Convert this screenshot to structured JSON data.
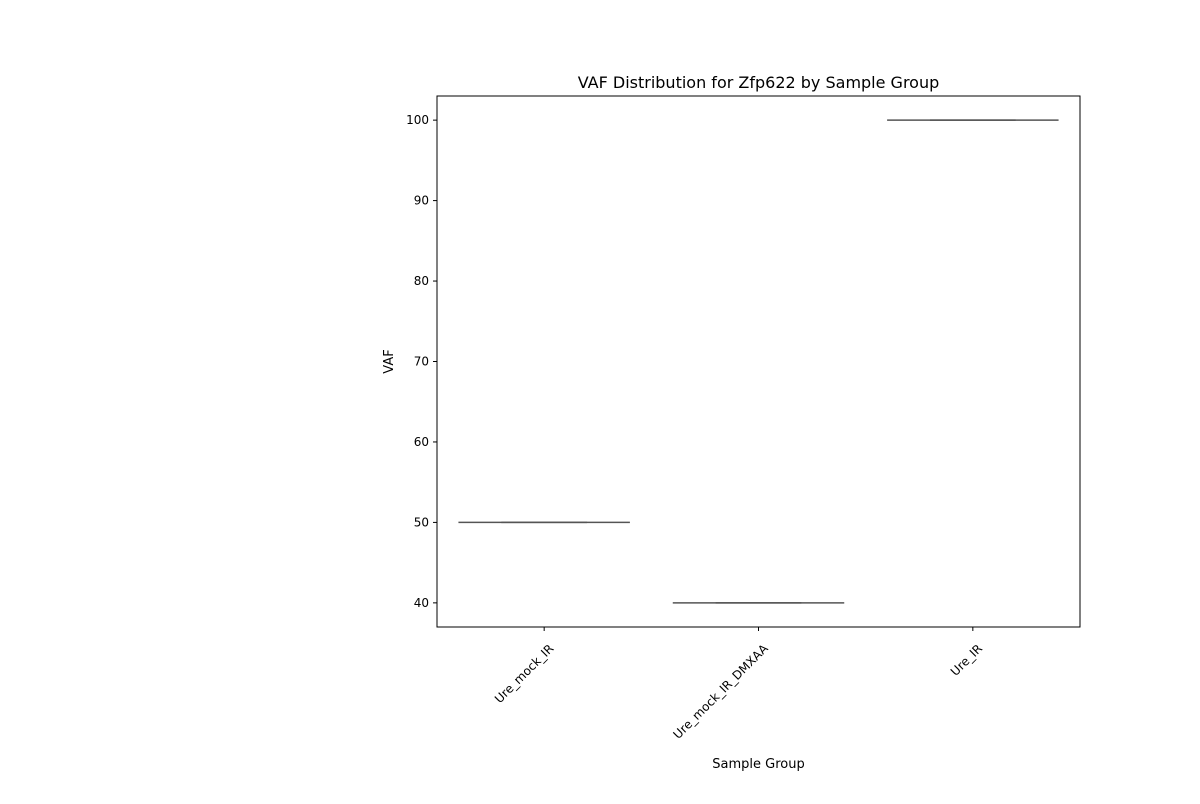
{
  "chart_data": {
    "type": "box",
    "title": "VAF Distribution for Zfp622 by Sample Group",
    "xlabel": "Sample Group",
    "ylabel": "VAF",
    "categories": [
      "Ure_mock_IR",
      "Ure_mock_IR_DMXAA",
      "Ure_IR"
    ],
    "values": [
      50,
      40,
      100
    ],
    "yticks": [
      "40",
      "50",
      "60",
      "70",
      "80",
      "90",
      "100"
    ],
    "ylim": [
      37,
      103
    ],
    "grid": false,
    "legend": "none",
    "colors": {
      "line": "#555555",
      "axis": "#000000"
    }
  }
}
